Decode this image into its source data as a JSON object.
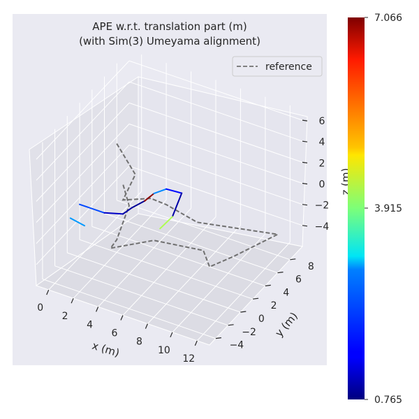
{
  "chart_data": {
    "type": "line",
    "projection": "3d",
    "title_lines": [
      "APE w.r.t. translation part (m)",
      "(with Sim(3) Umeyama alignment)"
    ],
    "xlabel": "x (m)",
    "ylabel": "y (m)",
    "zlabel": "z (m)",
    "x_ticks": [
      "0",
      "2",
      "4",
      "6",
      "8",
      "10",
      "12"
    ],
    "y_ticks": [
      "−4",
      "−2",
      "0",
      "2",
      "4",
      "6",
      "8"
    ],
    "z_ticks": [
      "−4",
      "−2",
      "0",
      "2",
      "4",
      "6"
    ],
    "legend": {
      "label": "reference",
      "placement": "top-right"
    },
    "colorbar": {
      "min": 0.765,
      "max": 7.066,
      "tick_labels": [
        "7.066",
        "3.915",
        "0.765"
      ],
      "colormap": "jet"
    },
    "reference_trajectory": [
      [
        1.5,
        3,
        3.5
      ],
      [
        3.5,
        2,
        2
      ],
      [
        3,
        1,
        0
      ],
      [
        4,
        3.5,
        -1
      ],
      [
        5,
        4,
        -1.5
      ],
      [
        7,
        5,
        -3
      ],
      [
        12,
        8,
        -4
      ],
      [
        10,
        5,
        -5
      ],
      [
        8.5,
        4,
        -6
      ],
      [
        9,
        2,
        -3
      ],
      [
        6,
        0,
        -2
      ],
      [
        3.5,
        -2,
        -2.5
      ],
      [
        4,
        -2,
        -1.5
      ],
      [
        4,
        0,
        0.5
      ],
      [
        3,
        1,
        1.5
      ]
    ],
    "estimate_segments": [
      {
        "from": [
          0,
          0,
          -1
        ],
        "to": [
          2,
          0,
          -1
        ],
        "ape": 2.0
      },
      {
        "from": [
          2,
          0,
          -1
        ],
        "to": [
          3.5,
          0,
          -0.5
        ],
        "ape": 1.2
      },
      {
        "from": [
          3.5,
          0,
          -0.5
        ],
        "to": [
          4,
          0.5,
          0
        ],
        "ape": 1.0
      },
      {
        "from": [
          4,
          0.5,
          0
        ],
        "to": [
          4.5,
          1.5,
          0.2
        ],
        "ape": 0.9
      },
      {
        "from": [
          4.5,
          1.5,
          0.2
        ],
        "to": [
          5,
          2,
          0.8
        ],
        "ape": 7.0
      },
      {
        "from": [
          5,
          2,
          0.8
        ],
        "to": [
          5.5,
          3,
          0.8
        ],
        "ape": 2.4
      },
      {
        "from": [
          5.5,
          3,
          0.8
        ],
        "to": [
          6.5,
          3.5,
          0.5
        ],
        "ape": 1.6
      },
      {
        "from": [
          6.5,
          3.5,
          0.5
        ],
        "to": [
          6.5,
          2,
          -0.8
        ],
        "ape": 1.0
      },
      {
        "from": [
          6.5,
          2,
          -0.8
        ],
        "to": [
          6,
          1,
          -1.5
        ],
        "ape": 4.2
      },
      {
        "from": [
          -0.5,
          -0.5,
          -2.2
        ],
        "to": [
          0.8,
          -0.8,
          -2.2
        ],
        "ape": 2.5
      }
    ],
    "grid": true
  }
}
